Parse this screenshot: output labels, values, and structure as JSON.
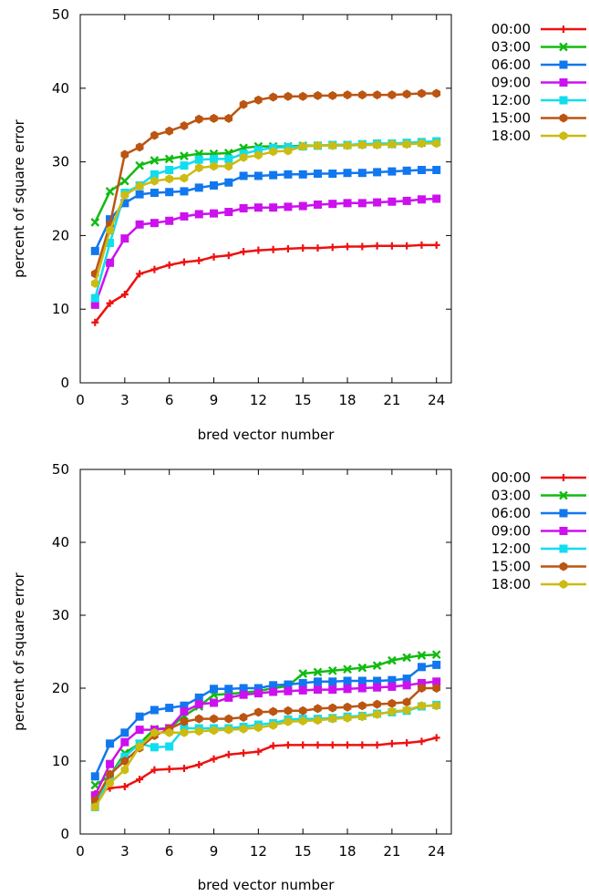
{
  "chart_data": [
    {
      "type": "line",
      "xlabel": "bred vector number",
      "ylabel": "percent of square error",
      "xlim": [
        0,
        25
      ],
      "ylim": [
        0,
        50
      ],
      "xticks": [
        0,
        3,
        6,
        9,
        12,
        15,
        18,
        21,
        24
      ],
      "yticks": [
        0,
        10,
        20,
        30,
        40,
        50
      ],
      "grid": false,
      "legend": "right",
      "x": [
        1,
        2,
        3,
        4,
        5,
        6,
        7,
        8,
        9,
        10,
        11,
        12,
        13,
        14,
        15,
        16,
        17,
        18,
        19,
        20,
        21,
        22,
        23,
        24
      ],
      "series": [
        {
          "name": "00:00",
          "color": "#ee1111",
          "marker": "plus",
          "values": [
            8.2,
            10.8,
            12.0,
            14.8,
            15.4,
            16.0,
            16.4,
            16.6,
            17.1,
            17.3,
            17.8,
            18.0,
            18.1,
            18.2,
            18.3,
            18.3,
            18.4,
            18.5,
            18.5,
            18.6,
            18.6,
            18.6,
            18.7,
            18.7
          ]
        },
        {
          "name": "03:00",
          "color": "#11bb11",
          "marker": "cross",
          "values": [
            21.8,
            26.0,
            27.4,
            29.5,
            30.2,
            30.4,
            30.8,
            31.1,
            31.1,
            31.2,
            31.9,
            32.1,
            32.1,
            32.1,
            32.2,
            32.2,
            32.3,
            32.3,
            32.4,
            32.4,
            32.4,
            32.5,
            32.6,
            32.7
          ]
        },
        {
          "name": "06:00",
          "color": "#1177ee",
          "marker": "square",
          "values": [
            17.9,
            22.2,
            24.4,
            25.6,
            25.8,
            25.9,
            26.0,
            26.5,
            26.8,
            27.2,
            28.1,
            28.1,
            28.2,
            28.3,
            28.3,
            28.4,
            28.4,
            28.5,
            28.5,
            28.6,
            28.7,
            28.8,
            28.9,
            28.9
          ]
        },
        {
          "name": "09:00",
          "color": "#cc11ee",
          "marker": "square",
          "values": [
            10.6,
            16.3,
            19.6,
            21.5,
            21.7,
            22.0,
            22.6,
            22.9,
            23.0,
            23.2,
            23.7,
            23.8,
            23.8,
            23.9,
            24.0,
            24.2,
            24.3,
            24.4,
            24.4,
            24.5,
            24.6,
            24.7,
            24.9,
            25.0
          ]
        },
        {
          "name": "12:00",
          "color": "#11ddee",
          "marker": "square",
          "values": [
            11.5,
            19.0,
            25.8,
            26.8,
            28.3,
            28.9,
            29.5,
            30.3,
            30.4,
            30.4,
            31.1,
            31.6,
            31.9,
            32.0,
            32.1,
            32.2,
            32.3,
            32.3,
            32.4,
            32.5,
            32.5,
            32.6,
            32.7,
            32.8
          ]
        },
        {
          "name": "15:00",
          "color": "#bb5511",
          "marker": "hexagon",
          "values": [
            14.8,
            21.5,
            31.0,
            32.0,
            33.6,
            34.2,
            34.9,
            35.8,
            35.9,
            35.9,
            37.8,
            38.4,
            38.8,
            38.9,
            38.9,
            39.0,
            39.0,
            39.1,
            39.1,
            39.1,
            39.1,
            39.2,
            39.3,
            39.3
          ]
        },
        {
          "name": "18:00",
          "color": "#ccbb11",
          "marker": "hexagon",
          "values": [
            13.5,
            20.7,
            25.5,
            26.7,
            27.4,
            27.7,
            27.8,
            29.2,
            29.4,
            29.4,
            30.6,
            30.9,
            31.4,
            31.5,
            32.1,
            32.2,
            32.2,
            32.2,
            32.3,
            32.3,
            32.4,
            32.4,
            32.5,
            32.5
          ]
        }
      ]
    },
    {
      "type": "line",
      "xlabel": "bred vector number",
      "ylabel": "percent of square error",
      "xlim": [
        0,
        25
      ],
      "ylim": [
        0,
        50
      ],
      "xticks": [
        0,
        3,
        6,
        9,
        12,
        15,
        18,
        21,
        24
      ],
      "yticks": [
        0,
        10,
        20,
        30,
        40,
        50
      ],
      "grid": false,
      "legend": "right",
      "x": [
        1,
        2,
        3,
        4,
        5,
        6,
        7,
        8,
        9,
        10,
        11,
        12,
        13,
        14,
        15,
        16,
        17,
        18,
        19,
        20,
        21,
        22,
        23,
        24
      ],
      "series": [
        {
          "name": "00:00",
          "color": "#ee1111",
          "marker": "plus",
          "values": [
            5.5,
            6.3,
            6.5,
            7.5,
            8.8,
            8.9,
            9.0,
            9.5,
            10.3,
            10.9,
            11.1,
            11.3,
            12.1,
            12.2,
            12.2,
            12.2,
            12.2,
            12.2,
            12.2,
            12.2,
            12.4,
            12.5,
            12.7,
            13.2
          ]
        },
        {
          "name": "03:00",
          "color": "#11bb11",
          "marker": "cross",
          "values": [
            6.7,
            8.0,
            11.1,
            12.4,
            14.4,
            14.5,
            16.2,
            17.5,
            19.1,
            19.2,
            19.4,
            19.6,
            20.0,
            20.3,
            22.0,
            22.2,
            22.4,
            22.6,
            22.8,
            23.1,
            23.8,
            24.2,
            24.5,
            24.6
          ]
        },
        {
          "name": "06:00",
          "color": "#1177ee",
          "marker": "square",
          "values": [
            7.9,
            12.4,
            13.9,
            16.1,
            17.0,
            17.3,
            17.6,
            18.7,
            19.9,
            19.9,
            20.0,
            20.0,
            20.4,
            20.5,
            20.7,
            20.9,
            20.9,
            21.0,
            21.0,
            21.0,
            21.1,
            21.3,
            22.9,
            23.2
          ]
        },
        {
          "name": "09:00",
          "color": "#cc11ee",
          "marker": "square",
          "values": [
            5.3,
            9.6,
            12.6,
            14.3,
            14.3,
            14.5,
            16.8,
            17.8,
            18.0,
            18.7,
            19.1,
            19.3,
            19.5,
            19.6,
            19.7,
            19.8,
            19.8,
            19.9,
            20.0,
            20.1,
            20.2,
            20.4,
            20.7,
            20.9
          ]
        },
        {
          "name": "12:00",
          "color": "#11ddee",
          "marker": "square",
          "values": [
            3.7,
            8.0,
            10.6,
            12.4,
            11.9,
            12.0,
            14.5,
            14.5,
            14.5,
            14.5,
            14.7,
            15.0,
            15.2,
            15.7,
            15.8,
            15.8,
            15.9,
            16.1,
            16.2,
            16.5,
            16.7,
            16.9,
            17.5,
            17.7
          ]
        },
        {
          "name": "15:00",
          "color": "#bb5511",
          "marker": "hexagon",
          "values": [
            4.6,
            8.2,
            10.0,
            11.8,
            13.5,
            14.4,
            15.4,
            15.8,
            15.8,
            15.8,
            16.0,
            16.7,
            16.8,
            16.9,
            16.9,
            17.2,
            17.3,
            17.4,
            17.6,
            17.8,
            17.9,
            18.1,
            20.0,
            20.0
          ]
        },
        {
          "name": "18:00",
          "color": "#ccbb11",
          "marker": "hexagon",
          "values": [
            3.7,
            7.0,
            8.8,
            12.0,
            13.9,
            13.9,
            13.9,
            14.1,
            14.2,
            14.3,
            14.4,
            14.6,
            14.9,
            15.4,
            15.5,
            15.6,
            15.8,
            15.9,
            16.1,
            16.4,
            16.8,
            17.0,
            17.6,
            17.6
          ]
        }
      ]
    }
  ]
}
